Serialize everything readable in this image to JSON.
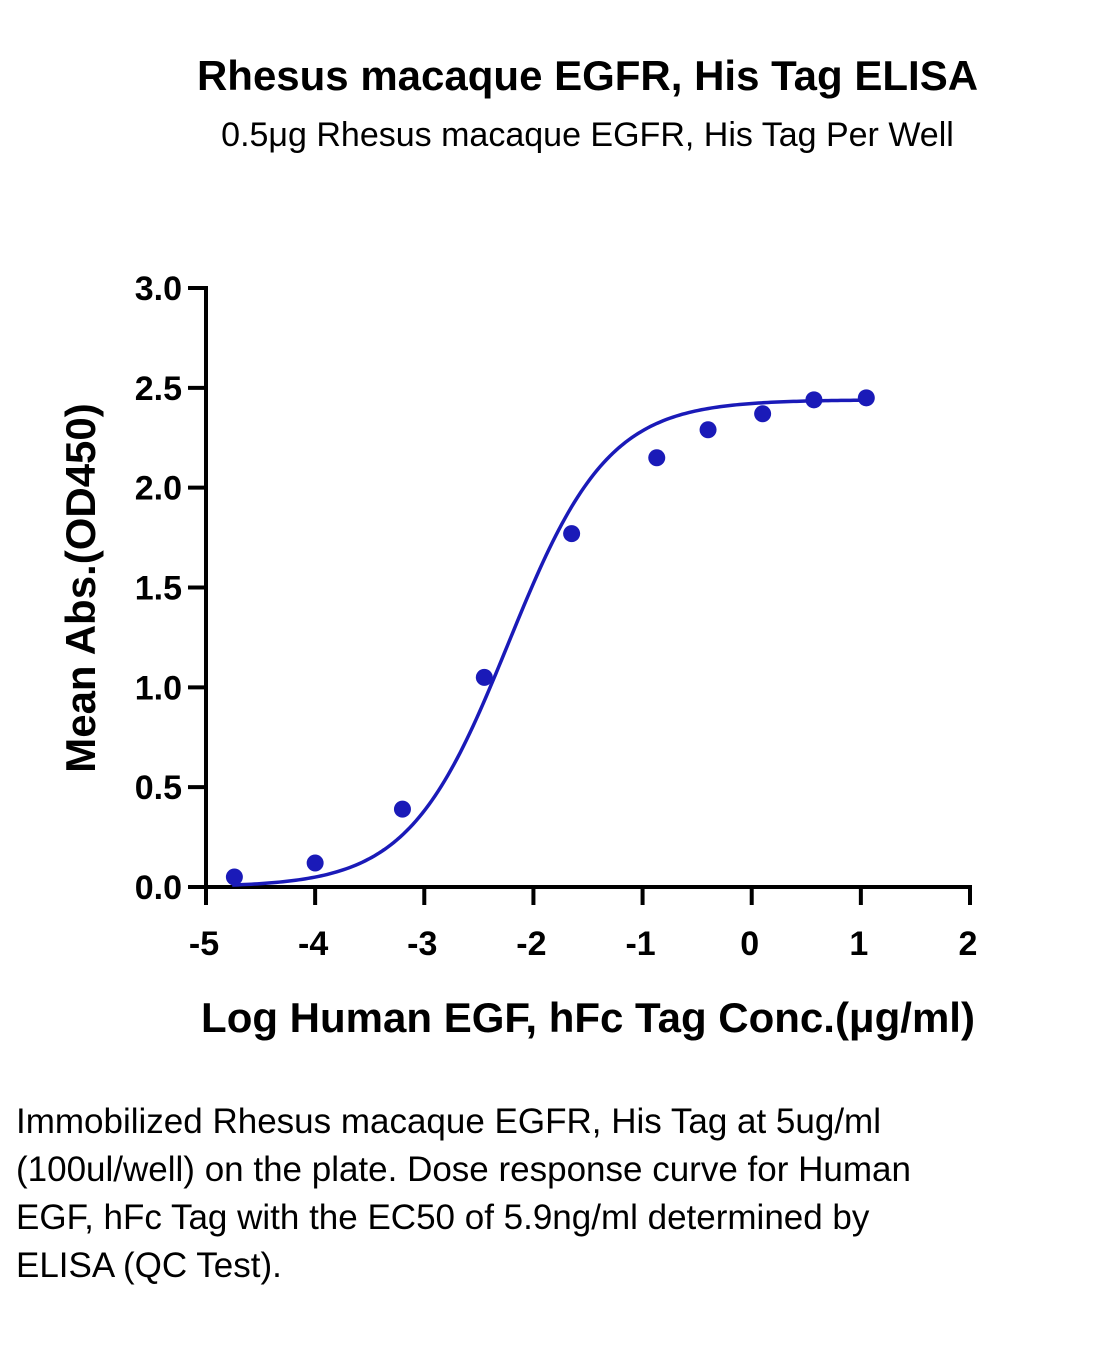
{
  "chart_data": {
    "type": "scatter",
    "title": "Rhesus macaque EGFR, His Tag ELISA",
    "subtitle": "0.5μg Rhesus macaque EGFR, His Tag Per Well",
    "xlabel": "Log Human EGF, hFc Tag Conc.(μg/ml)",
    "ylabel": "Mean Abs.(OD450)",
    "xlim": [
      -5,
      2
    ],
    "ylim": [
      0,
      3
    ],
    "x_ticks": [
      -5,
      -4,
      -3,
      -2,
      -1,
      0,
      1,
      2
    ],
    "y_ticks": [
      0,
      0.5,
      1,
      1.5,
      2,
      2.5,
      3
    ],
    "x_tick_labels": [
      "-5",
      "-4",
      "-3",
      "-2",
      "-1",
      "0",
      "1",
      "2"
    ],
    "y_tick_labels": [
      "0.0",
      "0.5",
      "1.0",
      "1.5",
      "2.0",
      "2.5",
      "3.0"
    ],
    "grid": false,
    "series": [
      {
        "x": [
          -4.74,
          -4.0,
          -3.2,
          -2.45,
          -1.65,
          -0.87,
          -0.4,
          0.1,
          0.57,
          1.05
        ],
        "y": [
          0.05,
          0.12,
          0.39,
          1.05,
          1.77,
          2.15,
          2.29,
          2.37,
          2.44,
          2.45
        ],
        "color": "#1a1ab8",
        "marker": "circle",
        "fit_curve": "4PL sigmoid"
      }
    ]
  },
  "caption": "Immobilized Rhesus macaque EGFR, His Tag at 5ug/ml (100ul/well) on the plate. Dose response curve for Human EGF, hFc Tag with the EC50 of 5.9ng/ml determined by ELISA (QC Test)."
}
